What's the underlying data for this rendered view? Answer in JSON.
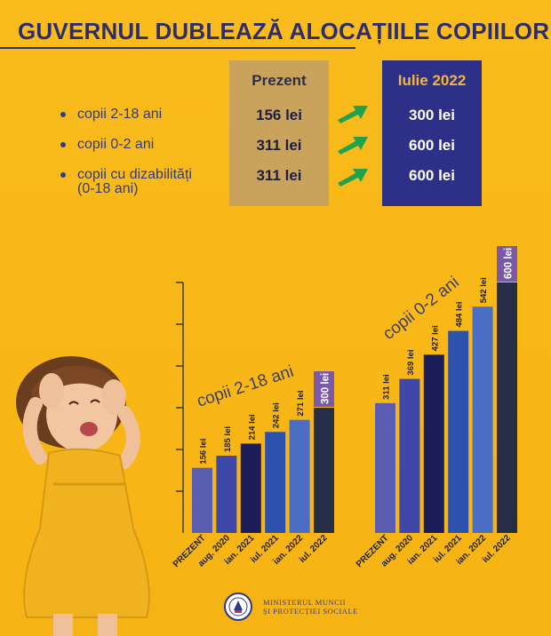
{
  "title": "GUVERNUL DUBLEAZĂ ALOCAȚIILE COPIILOR",
  "table": {
    "col1": "Prezent",
    "col2": "Iulie 2022",
    "rows": [
      {
        "label": "copii 2-18 ani",
        "now": "156 lei",
        "future": "300 lei"
      },
      {
        "label": "copii 0-2 ani",
        "now": "311 lei",
        "future": "600 lei"
      },
      {
        "label1": "copii cu dizabilități",
        "label2": "(0-18 ani)",
        "now": "311 lei",
        "future": "600 lei"
      }
    ]
  },
  "chart_data": [
    {
      "type": "bar",
      "title": "copii 2-18 ani",
      "categories": [
        "PREZENT",
        "aug. 2020",
        "ian. 2021",
        "iul. 2021",
        "ian. 2022",
        "iul. 2022"
      ],
      "values": [
        156,
        185,
        214,
        242,
        271,
        300
      ],
      "labels": [
        "156 lei",
        "185 lei",
        "214 lei",
        "242 lei",
        "271 lei",
        "300 lei"
      ],
      "highlight_last": true
    },
    {
      "type": "bar",
      "title": "copii 0-2 ani",
      "categories": [
        "PREZENT",
        "aug. 2020",
        "ian. 2021",
        "iul. 2021",
        "ian. 2022",
        "iul. 2022"
      ],
      "values": [
        311,
        369,
        427,
        484,
        542,
        600
      ],
      "labels": [
        "311 lei",
        "369 lei",
        "427 lei",
        "484 lei",
        "542 lei",
        "600 lei"
      ],
      "highlight_last": true
    }
  ],
  "colors": {
    "background": "#f8b919",
    "title": "#2d2d6d",
    "prezent_col": "#c9a35c",
    "iulie_col": "#2e2f86",
    "iulie_header": "#f3b53a",
    "arrow": "#23a24d",
    "highlight_label": "#7a5aa6",
    "bars": [
      "#5a5db0",
      "#3e48a8",
      "#1d1d5a",
      "#2d52ad",
      "#4a6ec4",
      "#262d47"
    ]
  },
  "footer": {
    "line1": "MINISTERUL  MUNCII",
    "line2": "ȘI PROTECȚIEI SOCIALE",
    "logo": "romanian-government-seal"
  }
}
